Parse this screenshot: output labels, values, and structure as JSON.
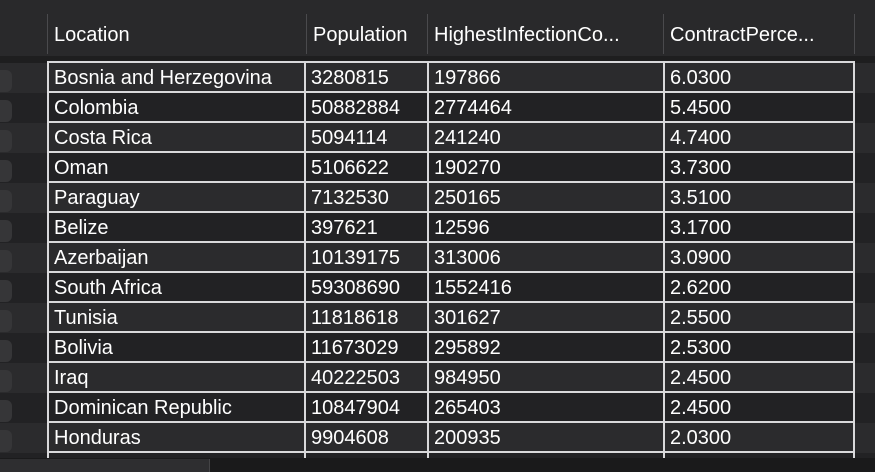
{
  "columns": [
    {
      "key": "location",
      "label": "Location"
    },
    {
      "key": "population",
      "label": "Population"
    },
    {
      "key": "highest",
      "label": "HighestInfectionCo..."
    },
    {
      "key": "percent",
      "label": "ContractPerce..."
    }
  ],
  "rows": [
    {
      "location": "Bosnia and Herzegovina",
      "population": "3280815",
      "highest": "197866",
      "percent": "6.0300"
    },
    {
      "location": "Colombia",
      "population": "50882884",
      "highest": "2774464",
      "percent": "5.4500"
    },
    {
      "location": "Costa Rica",
      "population": "5094114",
      "highest": "241240",
      "percent": "4.7400"
    },
    {
      "location": "Oman",
      "population": "5106622",
      "highest": "190270",
      "percent": "3.7300"
    },
    {
      "location": "Paraguay",
      "population": "7132530",
      "highest": "250165",
      "percent": "3.5100"
    },
    {
      "location": "Belize",
      "population": "397621",
      "highest": "12596",
      "percent": "3.1700"
    },
    {
      "location": "Azerbaijan",
      "population": "10139175",
      "highest": "313006",
      "percent": "3.0900"
    },
    {
      "location": "South Africa",
      "population": "59308690",
      "highest": "1552416",
      "percent": "2.6200"
    },
    {
      "location": "Tunisia",
      "population": "11818618",
      "highest": "301627",
      "percent": "2.5500"
    },
    {
      "location": "Bolivia",
      "population": "11673029",
      "highest": "295892",
      "percent": "2.5300"
    },
    {
      "location": "Iraq",
      "population": "40222503",
      "highest": "984950",
      "percent": "2.4500"
    },
    {
      "location": "Dominican Republic",
      "population": "10847904",
      "highest": "265403",
      "percent": "2.4500"
    },
    {
      "location": "Honduras",
      "population": "9904608",
      "highest": "200935",
      "percent": "2.0300"
    }
  ]
}
